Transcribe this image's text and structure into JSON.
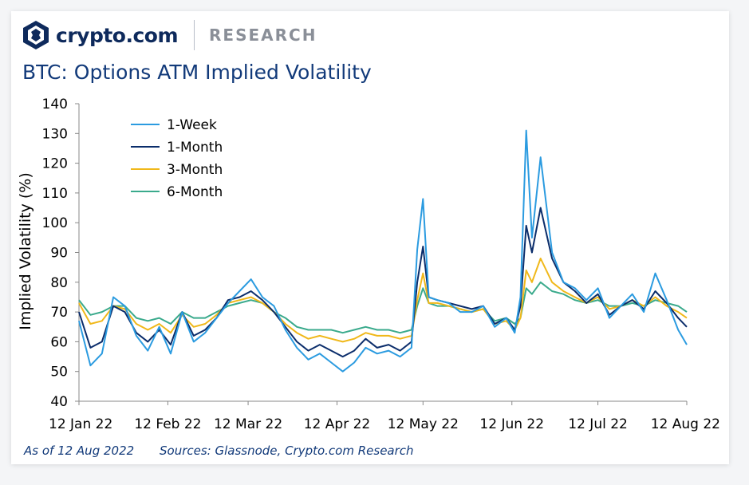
{
  "header": {
    "brand": "crypto.com",
    "section": "RESEARCH",
    "logo_icon": "crypto-com-shield-icon"
  },
  "footer": {
    "as_of": "As of 12 Aug 2022",
    "sources": "Sources: Glassnode, Crypto.com Research"
  },
  "colors": {
    "one_week": "#2b9be0",
    "one_month": "#0b2d6b",
    "three_month": "#f0b81a",
    "six_month": "#3aaa8c",
    "title": "#123a7a"
  },
  "chart_data": {
    "type": "line",
    "title": "BTC: Options ATM Implied Volatility",
    "ylabel": "Implied Volatility (%)",
    "xlabel": "",
    "ylim": [
      40,
      140
    ],
    "yticks": [
      40,
      50,
      60,
      70,
      80,
      90,
      100,
      110,
      120,
      130,
      140
    ],
    "xlim": [
      "2022-01-12",
      "2022-08-12"
    ],
    "xticks": [
      "12 Jan 22",
      "12 Feb 22",
      "12 Mar 22",
      "12 Apr 22",
      "12 May 22",
      "12 Jun 22",
      "12 Jul 22",
      "12 Aug 22"
    ],
    "legend_position": "top-left",
    "grid": false,
    "x": [
      "2022-01-12",
      "2022-01-16",
      "2022-01-20",
      "2022-01-24",
      "2022-01-28",
      "2022-02-01",
      "2022-02-05",
      "2022-02-09",
      "2022-02-13",
      "2022-02-17",
      "2022-02-21",
      "2022-02-25",
      "2022-03-01",
      "2022-03-05",
      "2022-03-09",
      "2022-03-13",
      "2022-03-17",
      "2022-03-21",
      "2022-03-25",
      "2022-03-29",
      "2022-04-02",
      "2022-04-06",
      "2022-04-10",
      "2022-04-14",
      "2022-04-18",
      "2022-04-22",
      "2022-04-26",
      "2022-04-30",
      "2022-05-04",
      "2022-05-08",
      "2022-05-10",
      "2022-05-12",
      "2022-05-14",
      "2022-05-17",
      "2022-05-21",
      "2022-05-25",
      "2022-05-29",
      "2022-06-02",
      "2022-06-06",
      "2022-06-10",
      "2022-06-13",
      "2022-06-15",
      "2022-06-17",
      "2022-06-19",
      "2022-06-22",
      "2022-06-26",
      "2022-06-30",
      "2022-07-04",
      "2022-07-08",
      "2022-07-12",
      "2022-07-16",
      "2022-07-20",
      "2022-07-24",
      "2022-07-28",
      "2022-08-01",
      "2022-08-05",
      "2022-08-09",
      "2022-08-12"
    ],
    "series": [
      {
        "name": "1-Week",
        "values": [
          67,
          52,
          56,
          75,
          72,
          62,
          57,
          65,
          56,
          70,
          60,
          63,
          68,
          73,
          77,
          81,
          75,
          72,
          64,
          58,
          54,
          56,
          53,
          50,
          53,
          58,
          56,
          57,
          55,
          58,
          91,
          108,
          75,
          74,
          73,
          70,
          70,
          72,
          65,
          68,
          63,
          75,
          131,
          95,
          122,
          90,
          80,
          78,
          74,
          78,
          68,
          72,
          76,
          70,
          83,
          74,
          64,
          59
        ]
      },
      {
        "name": "1-Month",
        "values": [
          70,
          58,
          60,
          72,
          70,
          63,
          60,
          64,
          59,
          70,
          62,
          64,
          68,
          74,
          75,
          77,
          74,
          70,
          65,
          60,
          57,
          59,
          57,
          55,
          57,
          61,
          58,
          59,
          57,
          60,
          80,
          92,
          75,
          74,
          73,
          72,
          71,
          72,
          66,
          68,
          64,
          72,
          99,
          90,
          105,
          88,
          80,
          77,
          73,
          76,
          69,
          72,
          74,
          71,
          77,
          73,
          68,
          65
        ]
      },
      {
        "name": "3-Month",
        "values": [
          73,
          66,
          67,
          72,
          71,
          66,
          64,
          66,
          63,
          69,
          65,
          66,
          69,
          73,
          74,
          75,
          73,
          70,
          66,
          63,
          61,
          62,
          61,
          60,
          61,
          63,
          62,
          62,
          61,
          62,
          74,
          83,
          73,
          73,
          72,
          71,
          70,
          71,
          66,
          67,
          64,
          68,
          84,
          80,
          88,
          80,
          77,
          75,
          73,
          75,
          71,
          72,
          74,
          72,
          75,
          72,
          70,
          68
        ]
      },
      {
        "name": "6-Month",
        "values": [
          74,
          69,
          70,
          72,
          72,
          68,
          67,
          68,
          66,
          70,
          68,
          68,
          70,
          72,
          73,
          74,
          73,
          70,
          68,
          65,
          64,
          64,
          64,
          63,
          64,
          65,
          64,
          64,
          63,
          64,
          72,
          78,
          73,
          72,
          72,
          71,
          70,
          71,
          67,
          68,
          66,
          68,
          78,
          76,
          80,
          77,
          76,
          74,
          73,
          74,
          72,
          72,
          73,
          72,
          74,
          73,
          72,
          70
        ]
      }
    ]
  }
}
